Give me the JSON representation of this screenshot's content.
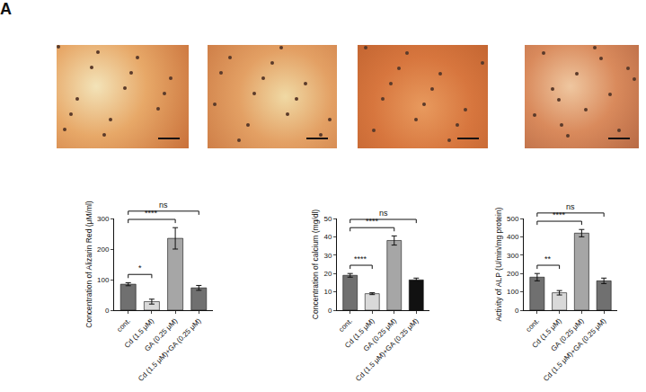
{
  "panel_label": "A",
  "chart_data": [
    {
      "type": "bar",
      "y_label": "Concentration of Alizarin Red (μM/ml)",
      "categories": [
        "cont.",
        "Cd (1.5 μM)",
        "GA (0.25 μM)",
        "Cd (1.5 μM)+GA (0.25 μM)"
      ],
      "values": [
        85,
        28,
        235,
        73
      ],
      "errors": [
        5,
        8,
        35,
        8
      ],
      "colors": [
        "#707070",
        "#d9d9d9",
        "#a6a6a6",
        "#707070"
      ],
      "ylim": [
        0,
        300
      ],
      "yticks": [
        0,
        100,
        200,
        300
      ],
      "comparisons": [
        {
          "from": "cont.",
          "to": "Cd (1.5 μM)",
          "label": "*"
        },
        {
          "from": "cont.",
          "to": "GA (0.25 μM)",
          "label": "****"
        },
        {
          "from": "cont.",
          "to": "Cd (1.5 μM)+GA (0.25 μM)",
          "label": "ns"
        }
      ]
    },
    {
      "type": "bar",
      "y_label": "Concentration of calcium (mg/dl)",
      "categories": [
        "cont.",
        "Cd (1.5 μM)",
        "GA (0.25 μM)",
        "Cd (1.5 μM)+GA (0.25 μM)"
      ],
      "values": [
        19,
        9,
        38,
        16.5
      ],
      "errors": [
        1,
        0.5,
        2.5,
        1
      ],
      "colors": [
        "#707070",
        "#d9d9d9",
        "#a6a6a6",
        "#111111"
      ],
      "ylim": [
        0,
        50
      ],
      "yticks": [
        0,
        10,
        20,
        30,
        40,
        50
      ],
      "comparisons": [
        {
          "from": "cont.",
          "to": "Cd (1.5 μM)",
          "label": "****"
        },
        {
          "from": "cont.",
          "to": "GA (0.25 μM)",
          "label": "****"
        },
        {
          "from": "cont.",
          "to": "Cd (1.5 μM)+GA (0.25 μM)",
          "label": "ns"
        }
      ]
    },
    {
      "type": "bar",
      "y_label": "Activity of ALP (U/min/mg protein)",
      "categories": [
        "cont.",
        "Cd (1.5 μM)",
        "GA (0.25 μM)",
        "Cd (1.5 μM)+GA (0.25 μM)"
      ],
      "values": [
        180,
        95,
        420,
        160
      ],
      "errors": [
        20,
        12,
        20,
        15
      ],
      "colors": [
        "#707070",
        "#d9d9d9",
        "#a6a6a6",
        "#707070"
      ],
      "ylim": [
        0,
        500
      ],
      "yticks": [
        0,
        100,
        200,
        300,
        400,
        500
      ],
      "comparisons": [
        {
          "from": "cont.",
          "to": "Cd (1.5 μM)",
          "label": "**"
        },
        {
          "from": "cont.",
          "to": "GA (0.25 μM)",
          "label": "****"
        },
        {
          "from": "cont.",
          "to": "Cd (1.5 μM)+GA (0.25 μM)",
          "label": "ns"
        }
      ]
    }
  ]
}
